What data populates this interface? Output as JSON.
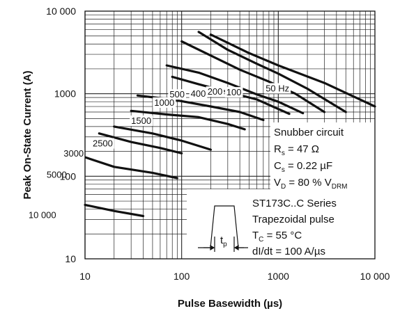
{
  "chart_data": {
    "type": "line",
    "xlabel": "Pulse Basewidth (µs)",
    "ylabel": "Peak On-State Current (A)",
    "xscale": "log",
    "yscale": "log",
    "xlim": [
      10,
      10000
    ],
    "ylim": [
      10,
      10000
    ],
    "grid": true,
    "x_ticks": [
      {
        "value": 10,
        "label": "10"
      },
      {
        "value": 100,
        "label": "100"
      },
      {
        "value": 1000,
        "label": "1000"
      },
      {
        "value": 10000,
        "label": "10 000"
      }
    ],
    "y_ticks": [
      {
        "value": 10,
        "label": "10"
      },
      {
        "value": 100,
        "label": "100"
      },
      {
        "value": 1000,
        "label": "1000"
      },
      {
        "value": 10000,
        "label": "10 000"
      }
    ],
    "series": [
      {
        "name": "50 Hz",
        "x": [
          200,
          500,
          1000,
          3000,
          10000
        ],
        "y": [
          5200,
          3100,
          2200,
          1350,
          700
        ],
        "label_at": [
          740,
          1160
        ]
      },
      {
        "name": "100",
        "x": [
          150,
          300,
          600,
          1000,
          2000,
          5000
        ],
        "y": [
          5600,
          3400,
          2300,
          1750,
          1150,
          600
        ],
        "label_at": [
          290,
          1040
        ]
      },
      {
        "name": "200",
        "x": [
          100,
          200,
          400,
          800,
          1500,
          3000
        ],
        "y": [
          4300,
          2900,
          1950,
          1400,
          1000,
          600
        ],
        "label_at": [
          185,
          1060
        ]
      },
      {
        "name": "400",
        "x": [
          70,
          150,
          300,
          600,
          1000,
          1800
        ],
        "y": [
          2200,
          1800,
          1350,
          980,
          800,
          580
        ],
        "label_at": [
          124,
          1000
        ]
      },
      {
        "name": "500",
        "x": [
          80,
          150,
          300,
          600,
          1300
        ],
        "y": [
          1600,
          1300,
          1050,
          850,
          570
        ],
        "label_at": [
          75,
          980
        ]
      },
      {
        "name": "1000",
        "x": [
          35,
          80,
          200,
          400,
          700
        ],
        "y": [
          950,
          850,
          700,
          600,
          480
        ],
        "label_at": [
          52,
          780
        ]
      },
      {
        "name": "1500",
        "x": [
          30,
          70,
          150,
          300,
          450
        ],
        "y": [
          620,
          560,
          520,
          430,
          370
        ],
        "label_at": [
          30,
          470
        ]
      },
      {
        "name": "2500",
        "x": [
          20,
          50,
          100,
          200
        ],
        "y": [
          400,
          330,
          270,
          210
        ],
        "label_at": [
          12,
          250
        ]
      },
      {
        "name": "3000",
        "x": [
          14,
          30,
          60,
          100
        ],
        "y": [
          330,
          260,
          220,
          190
        ],
        "label_at": [
          6,
          190
        ]
      },
      {
        "name": "5000",
        "x": [
          10,
          20,
          50,
          90
        ],
        "y": [
          170,
          130,
          110,
          95
        ],
        "label_at": [
          4,
          105
        ]
      },
      {
        "name": "10 000",
        "x": [
          10,
          20,
          40
        ],
        "y": [
          45,
          38,
          33
        ],
        "label_at": [
          2.6,
          34
        ]
      }
    ]
  },
  "annotations": {
    "snubber": {
      "title": "Snubber circuit",
      "rs_prefix": "R",
      "rs_sub": "s",
      "rs_value": " = 47 Ω",
      "cs_prefix": "C",
      "cs_sub": "s",
      "cs_value": " = 0.22 µF",
      "vd_prefix": "V",
      "vd_sub": "D",
      "vd_value": " = 80 % V",
      "vd_sub2": "DRM"
    },
    "series_info": {
      "line1": "ST173C..C Series",
      "line2": "Trapezoidal pulse",
      "tc_prefix": "T",
      "tc_sub": "C",
      "tc_value": " = 55 °C",
      "line4": "dI/dt = 100 A/µs"
    },
    "pulse_symbol": {
      "label": "t",
      "sub": "p"
    }
  }
}
